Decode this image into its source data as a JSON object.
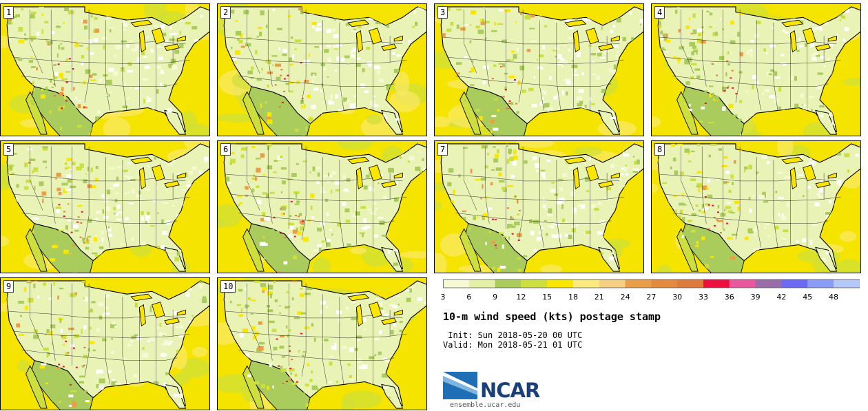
{
  "panels": [
    {
      "label": "1"
    },
    {
      "label": "2"
    },
    {
      "label": "3"
    },
    {
      "label": "4"
    },
    {
      "label": "5"
    },
    {
      "label": "6"
    },
    {
      "label": "7"
    },
    {
      "label": "8"
    },
    {
      "label": "9"
    },
    {
      "label": "10"
    }
  ],
  "colorbar": {
    "ticks": [
      "3",
      "6",
      "9",
      "12",
      "15",
      "18",
      "21",
      "24",
      "27",
      "30",
      "33",
      "36",
      "39",
      "42",
      "45",
      "48"
    ],
    "colors": [
      "#f7f9d4",
      "#e3f0a6",
      "#a9cc5c",
      "#cddf3e",
      "#fae600",
      "#fcea7c",
      "#f6cf82",
      "#ea9e48",
      "#e48a3e",
      "#dd7a3c",
      "#ee0f40",
      "#e8589e",
      "#9a6ca8",
      "#6a6af2",
      "#8a9cf6",
      "#b4c8fa"
    ]
  },
  "title": "10-m wind speed (kts) postage stamp",
  "init": " Init: Sun 2018-05-20 00 UTC",
  "valid": "Valid: Mon 2018-05-21 01 UTC",
  "logo": {
    "text": "NCAR",
    "site": "ensemble.ucar.edu",
    "colors": {
      "dark": "#1b3f7a",
      "blue": "#1e6fb5",
      "light": "#7fb6df"
    }
  }
}
